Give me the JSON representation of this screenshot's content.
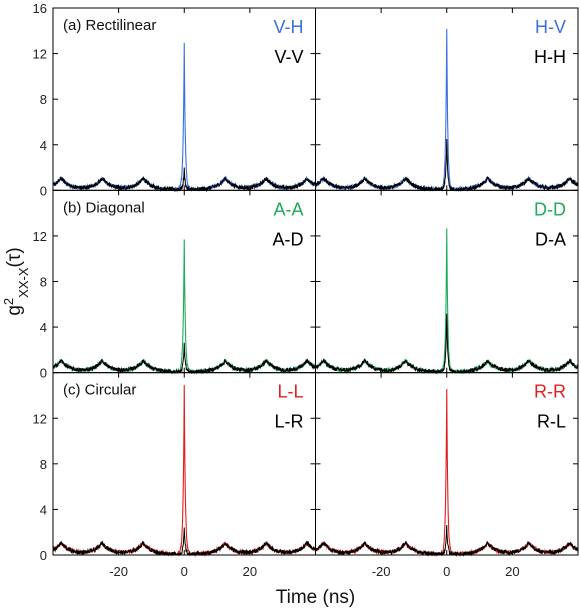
{
  "chart_data": {
    "type": "line",
    "layout": "3x2 grid of panels sharing axes",
    "xlabel": "Time (ns)",
    "ylabel_base": "g",
    "ylabel_sup": "2",
    "ylabel_sub": "XX-X",
    "ylabel_tail": "(τ)",
    "xlim": [
      -40,
      40
    ],
    "ylim": [
      0,
      16
    ],
    "x_ticks": [
      -20,
      0,
      20
    ],
    "x_tick_labels": [
      "-20",
      "0",
      "20"
    ],
    "y_ticks": [
      0,
      4,
      8,
      12,
      16
    ],
    "y_tick_labels": [
      "0",
      "4",
      "8",
      "12",
      "16"
    ],
    "grid": false,
    "legend_position": "top-right",
    "peak_period_ns": 12.5,
    "side_peak_height": 1.0,
    "colors": {
      "blue": "#3b6fe0",
      "green": "#1faa5e",
      "red": "#e02020",
      "black": "#000000"
    },
    "panels": [
      {
        "row": 0,
        "col": 0,
        "label": "(a) Rectilinear",
        "series": [
          {
            "name": "V-H",
            "color": "#3b6fe0",
            "center_peak": 13.0
          },
          {
            "name": "V-V",
            "color": "#000000",
            "center_peak": 1.8
          }
        ]
      },
      {
        "row": 0,
        "col": 1,
        "label": "",
        "series": [
          {
            "name": "H-V",
            "color": "#3b6fe0",
            "center_peak": 14.0
          },
          {
            "name": "H-H",
            "color": "#000000",
            "center_peak": 4.4
          }
        ]
      },
      {
        "row": 1,
        "col": 0,
        "label": "(b) Diagonal",
        "series": [
          {
            "name": "A-A",
            "color": "#1faa5e",
            "center_peak": 11.8
          },
          {
            "name": "A-D",
            "color": "#000000",
            "center_peak": 2.6
          }
        ]
      },
      {
        "row": 1,
        "col": 1,
        "label": "",
        "series": [
          {
            "name": "D-D",
            "color": "#1faa5e",
            "center_peak": 12.6
          },
          {
            "name": "D-A",
            "color": "#000000",
            "center_peak": 5.1
          }
        ]
      },
      {
        "row": 2,
        "col": 0,
        "label": "(c) Circular",
        "series": [
          {
            "name": "L-L",
            "color": "#e02020",
            "center_peak": 14.8
          },
          {
            "name": "L-R",
            "color": "#000000",
            "center_peak": 2.2
          }
        ]
      },
      {
        "row": 2,
        "col": 1,
        "label": "",
        "series": [
          {
            "name": "R-R",
            "color": "#e02020",
            "center_peak": 14.6
          },
          {
            "name": "R-L",
            "color": "#000000",
            "center_peak": 2.4
          }
        ]
      }
    ]
  }
}
